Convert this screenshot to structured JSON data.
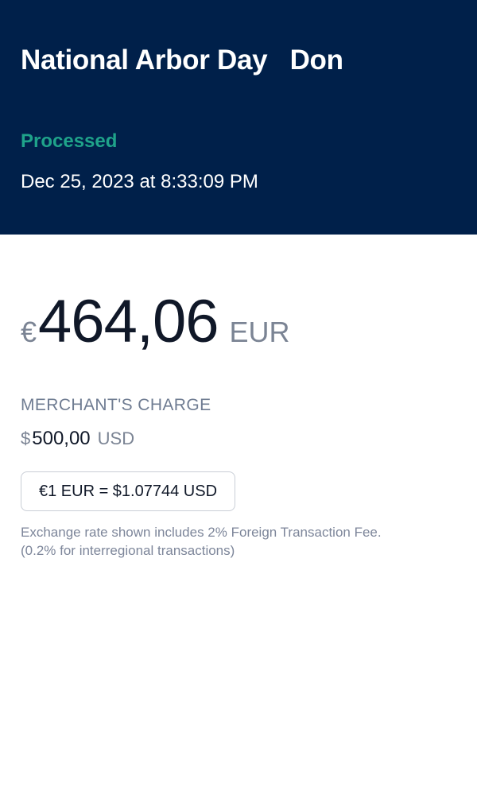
{
  "header": {
    "title": "National Arbor Day   Don",
    "status": "Processed",
    "timestamp": "Dec 25, 2023 at 8:33:09 PM"
  },
  "amount": {
    "symbol": "€",
    "value": "464,06",
    "currency": "EUR"
  },
  "merchant_charge": {
    "label": "MERCHANT'S CHARGE",
    "symbol": "$",
    "value": "500,00",
    "currency": "USD"
  },
  "exchange_rate": {
    "text": "€1 EUR = $1.07744 USD"
  },
  "fee_note": {
    "line1": "Exchange rate shown includes 2% Foreign Transaction Fee.",
    "line2": "(0.2% for interregional transactions)"
  },
  "colors": {
    "header_background": "#00204a",
    "status_green": "#1fa38a",
    "muted_text": "#7b8494"
  }
}
